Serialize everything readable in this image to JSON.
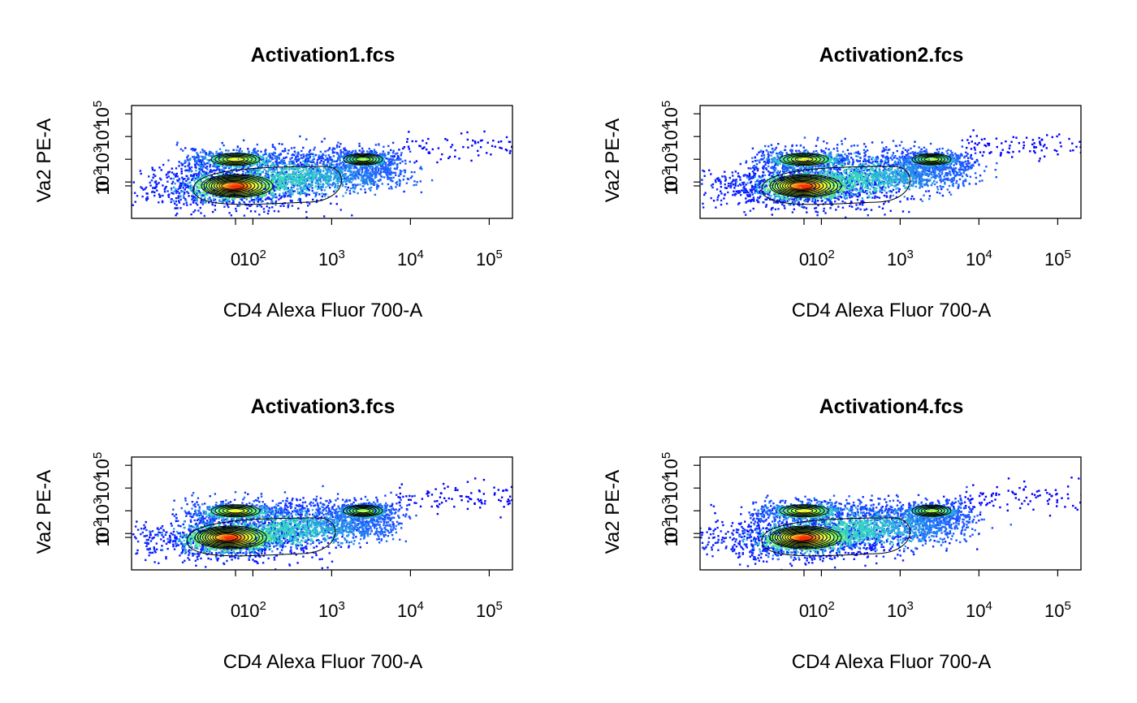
{
  "colors": {
    "background": "#ffffff",
    "density_palette": [
      "#0000ff",
      "#1e66ff",
      "#2fd3c8",
      "#7fff5a",
      "#ffff33",
      "#ff2a00"
    ],
    "contour": "#000000"
  },
  "chart_data": [
    {
      "type": "scatter",
      "subtype": "density scatter with contours",
      "title": "Activation1.fcs",
      "xlabel": "CD4 Alexa Fluor 700-A",
      "ylabel": "Va2 PE-A",
      "x_tick_labels": [
        "0",
        "10^2",
        "10^3",
        "10^4",
        "10^5"
      ],
      "y_tick_labels": [
        "0",
        "10^2",
        "10^3",
        "10^4",
        "10^5"
      ],
      "x_scale": "biexponential (logicle)",
      "y_scale": "biexponential (logicle)",
      "grid": false,
      "legend": "none",
      "populations": [
        {
          "x": 0,
          "y": 0,
          "density": "highest"
        },
        {
          "x": 0,
          "y": 1000,
          "density": "high"
        },
        {
          "x": 2500,
          "y": 1000,
          "density": "medium"
        }
      ]
    },
    {
      "type": "scatter",
      "subtype": "density scatter with contours",
      "title": "Activation2.fcs",
      "xlabel": "CD4 Alexa Fluor 700-A",
      "ylabel": "Va2 PE-A",
      "x_tick_labels": [
        "0",
        "10^2",
        "10^3",
        "10^4",
        "10^5"
      ],
      "y_tick_labels": [
        "0",
        "10^2",
        "10^3",
        "10^4",
        "10^5"
      ],
      "x_scale": "biexponential (logicle)",
      "y_scale": "biexponential (logicle)",
      "grid": false,
      "legend": "none",
      "populations": [
        {
          "x": 0,
          "y": 0,
          "density": "highest"
        },
        {
          "x": 0,
          "y": 1000,
          "density": "high"
        },
        {
          "x": 2500,
          "y": 1000,
          "density": "medium"
        }
      ]
    },
    {
      "type": "scatter",
      "subtype": "density scatter with contours",
      "title": "Activation3.fcs",
      "xlabel": "CD4 Alexa Fluor 700-A",
      "ylabel": "Va2 PE-A",
      "x_tick_labels": [
        "0",
        "10^2",
        "10^3",
        "10^4",
        "10^5"
      ],
      "y_tick_labels": [
        "0",
        "10^2",
        "10^3",
        "10^4",
        "10^5"
      ],
      "x_scale": "biexponential (logicle)",
      "y_scale": "biexponential (logicle)",
      "grid": false,
      "legend": "none",
      "populations": [
        {
          "x": 50,
          "y": 0,
          "density": "highest"
        },
        {
          "x": 0,
          "y": 1000,
          "density": "high"
        },
        {
          "x": 2500,
          "y": 1000,
          "density": "medium"
        }
      ]
    },
    {
      "type": "scatter",
      "subtype": "density scatter with contours",
      "title": "Activation4.fcs",
      "xlabel": "CD4 Alexa Fluor 700-A",
      "ylabel": "Va2 PE-A",
      "x_tick_labels": [
        "0",
        "10^2",
        "10^3",
        "10^4",
        "10^5"
      ],
      "y_tick_labels": [
        "0",
        "10^2",
        "10^3",
        "10^4",
        "10^5"
      ],
      "x_scale": "biexponential (logicle)",
      "y_scale": "biexponential (logicle)",
      "grid": false,
      "legend": "none",
      "populations": [
        {
          "x": 0,
          "y": 0,
          "density": "highest"
        },
        {
          "x": 0,
          "y": 1000,
          "density": "high"
        },
        {
          "x": 2500,
          "y": 1000,
          "density": "medium"
        }
      ]
    }
  ]
}
